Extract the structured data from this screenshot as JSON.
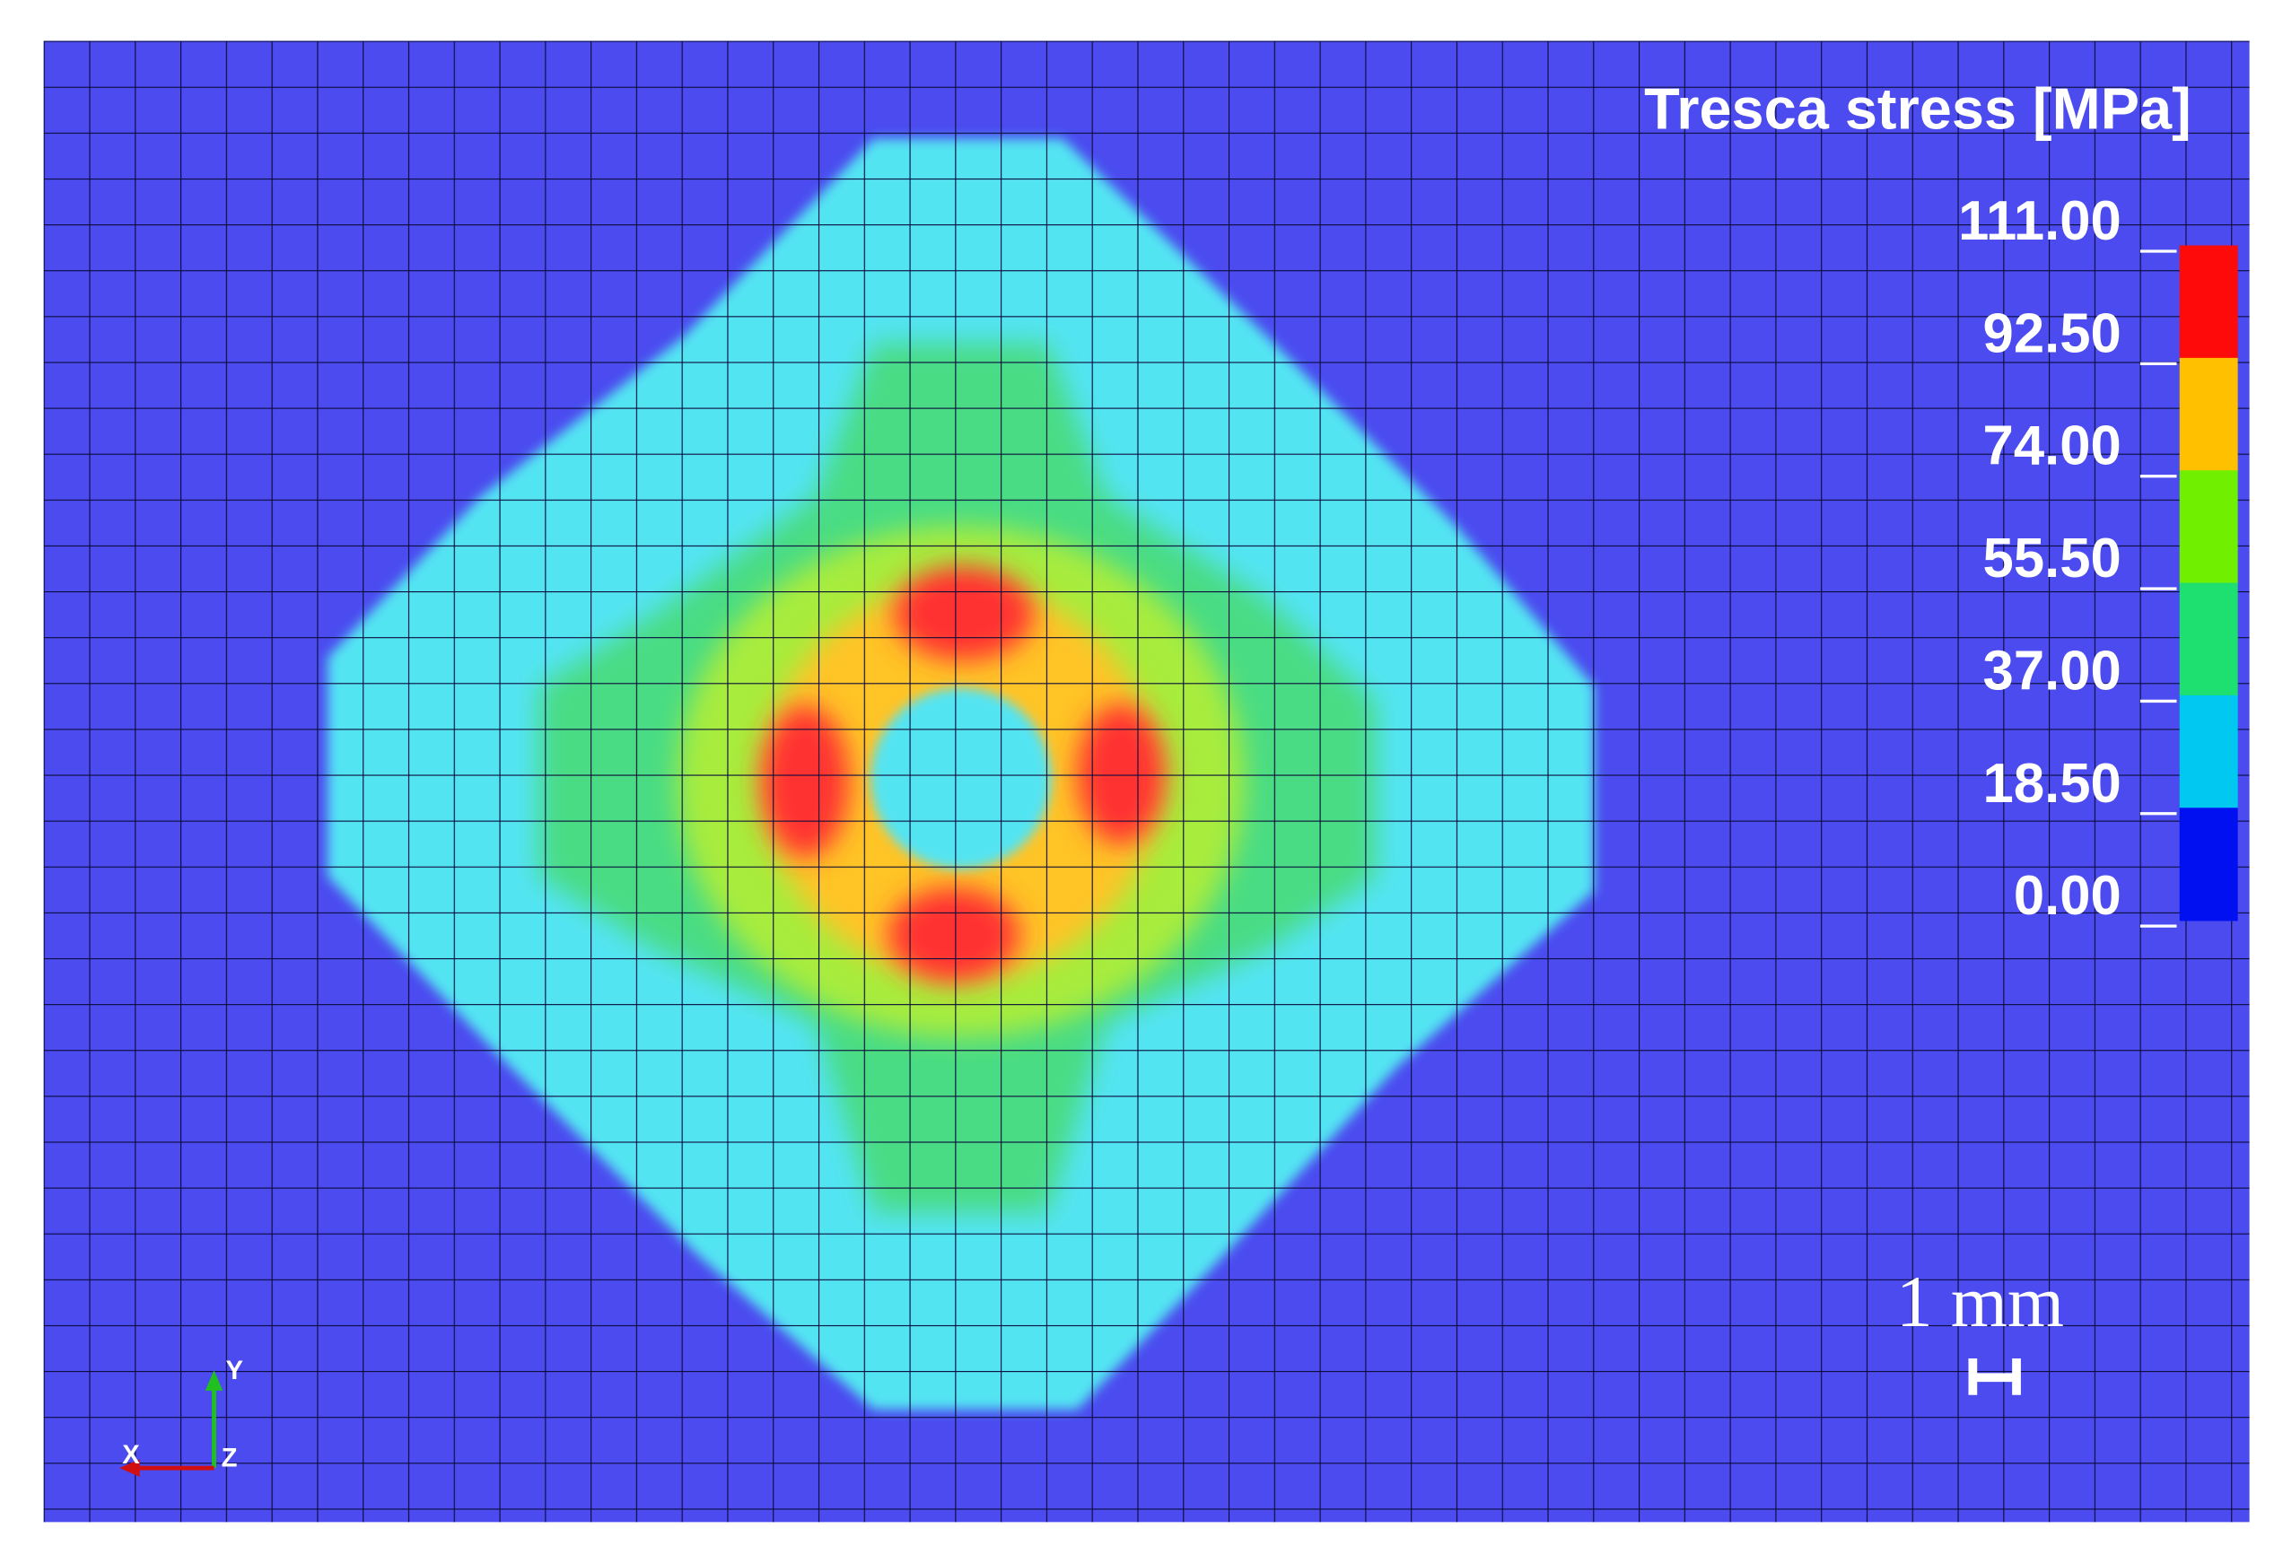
{
  "legend": {
    "title": "Tresca stress [MPa]",
    "ticks": [
      "111.00",
      "92.50",
      "74.00",
      "55.50",
      "37.00",
      "18.50",
      "0.00"
    ],
    "colors": [
      "#ff0a0a",
      "#ffc000",
      "#70f000",
      "#1ee070",
      "#00c8f0",
      "#0010f0"
    ]
  },
  "scale_bar": "1 mm",
  "axes": {
    "x": "X",
    "y": "Y",
    "z": "Z"
  }
}
